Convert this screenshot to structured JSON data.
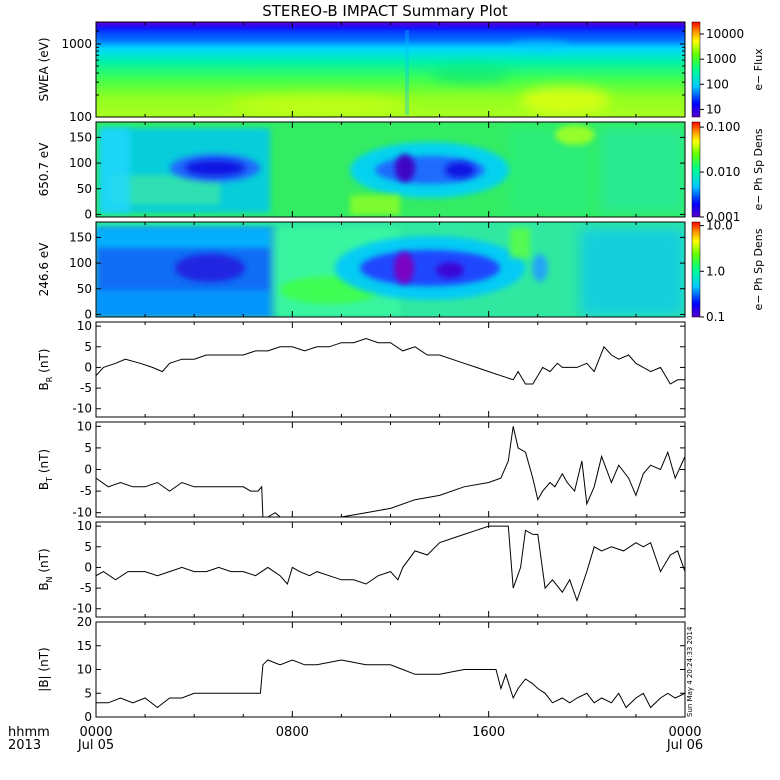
{
  "title": "STEREO-B IMPACT Summary Plot",
  "stamp": "Sun May  4 20:24:33 2014",
  "x_axis": {
    "row1_label": "hhmm",
    "row2_label": "2013",
    "ticks": [
      {
        "hour": 0,
        "time": "0000",
        "date": "Jul 05"
      },
      {
        "hour": 8,
        "time": "0800",
        "date": ""
      },
      {
        "hour": 16,
        "time": "1600",
        "date": ""
      },
      {
        "hour": 24,
        "time": "0000",
        "date": "Jul 06"
      }
    ]
  },
  "chart_data": [
    {
      "type": "heatmap",
      "id": "swea",
      "ylabel": "SWEA (eV)",
      "ylim": [
        100,
        2000
      ],
      "y_scale": "log",
      "y_ticks": [
        "100",
        "1000"
      ],
      "colorbar": {
        "label": "e− Flux",
        "scale": "log",
        "ticks": [
          "10",
          "100",
          "1000",
          "10000"
        ],
        "range": [
          5,
          30000
        ]
      }
    },
    {
      "type": "heatmap",
      "id": "pad650",
      "ylabel": "650.7 eV",
      "ylim": [
        -5,
        180
      ],
      "y_ticks": [
        "0",
        "50",
        "100",
        "150"
      ],
      "colorbar": {
        "label": "e− Ph Sp Dens",
        "scale": "log",
        "ticks": [
          "0.001",
          "0.010",
          "0.100"
        ],
        "range": [
          0.001,
          0.13
        ]
      }
    },
    {
      "type": "heatmap",
      "id": "pad246",
      "ylabel": "246.6 eV",
      "ylim": [
        -5,
        180
      ],
      "y_ticks": [
        "0",
        "50",
        "100",
        "150"
      ],
      "colorbar": {
        "label": "e− Ph Sp Dens",
        "scale": "log",
        "ticks": [
          "0.1",
          "1.0",
          "10.0"
        ],
        "range": [
          0.1,
          12
        ]
      }
    },
    {
      "type": "line",
      "id": "br",
      "ylabel": "B",
      "ylabel_sub": "R",
      "ylabel_unit": "(nT)",
      "ylim": [
        -12,
        11
      ],
      "y_ticks": [
        "-10",
        "-5",
        "0",
        "5",
        "10"
      ],
      "x": [
        0,
        0.3,
        0.8,
        1.2,
        1.8,
        2.3,
        2.7,
        3.0,
        3.5,
        4.0,
        4.5,
        5.0,
        5.5,
        6.0,
        6.5,
        7.0,
        7.5,
        8.0,
        8.5,
        9.0,
        9.5,
        10.0,
        10.5,
        11.0,
        11.5,
        12.0,
        12.5,
        13.0,
        13.5,
        14.0,
        14.5,
        15.0,
        15.5,
        16.0,
        16.5,
        17.0,
        17.2,
        17.5,
        17.8,
        18.0,
        18.2,
        18.5,
        18.8,
        19.0,
        19.3,
        19.6,
        20.0,
        20.3,
        20.7,
        21.0,
        21.3,
        21.7,
        22.0,
        22.3,
        22.6,
        23.0,
        23.4,
        23.7,
        24.0
      ],
      "y": [
        -2,
        0,
        1,
        2,
        1,
        0,
        -1,
        1,
        2,
        2,
        3,
        3,
        3,
        3,
        4,
        4,
        5,
        5,
        4,
        5,
        5,
        6,
        6,
        7,
        6,
        6,
        4,
        5,
        3,
        3,
        2,
        1,
        0,
        -1,
        -2,
        -3,
        -1,
        -4,
        -4,
        -2,
        0,
        -1,
        1,
        0,
        0,
        0,
        1,
        -1,
        5,
        3,
        2,
        3,
        1,
        0,
        -1,
        0,
        -4,
        -3,
        -3
      ]
    },
    {
      "type": "line",
      "id": "bt",
      "ylabel": "B",
      "ylabel_sub": "T",
      "ylabel_unit": "(nT)",
      "ylim": [
        -11,
        11
      ],
      "y_ticks": [
        "-10",
        "-5",
        "0",
        "5",
        "10"
      ],
      "x": [
        0,
        0.5,
        1.0,
        1.5,
        2.0,
        2.5,
        3.0,
        3.5,
        4.0,
        4.5,
        5.0,
        5.5,
        6.0,
        6.3,
        6.6,
        6.75,
        6.8,
        7.0,
        7.3,
        7.5,
        8.0,
        9.0,
        10.0,
        11.0,
        12.0,
        13.0,
        14.0,
        15.0,
        16.0,
        16.5,
        16.8,
        17.0,
        17.2,
        17.5,
        17.8,
        18.0,
        18.2,
        18.5,
        18.7,
        19.0,
        19.2,
        19.5,
        19.8,
        20.0,
        20.3,
        20.6,
        21.0,
        21.3,
        21.7,
        22.0,
        22.3,
        22.6,
        23.0,
        23.3,
        23.6,
        24.0
      ],
      "y": [
        -2,
        -4,
        -3,
        -4,
        -4,
        -3,
        -5,
        -3,
        -4,
        -4,
        -4,
        -4,
        -4,
        -5,
        -5,
        -4,
        -11,
        -11,
        -10,
        -11,
        -11,
        -11,
        -11,
        -10,
        -9,
        -7,
        -6,
        -4,
        -3,
        -2,
        2,
        10,
        5,
        4,
        -2,
        -7,
        -5,
        -3,
        -4,
        -1,
        -3,
        -5,
        2,
        -8,
        -4,
        3,
        -3,
        1,
        -2,
        -6,
        -1,
        1,
        0,
        4,
        -2,
        3
      ]
    },
    {
      "type": "line",
      "id": "bn",
      "ylabel": "B",
      "ylabel_sub": "N",
      "ylabel_unit": "(nT)",
      "ylim": [
        -12,
        11
      ],
      "y_ticks": [
        "-10",
        "-5",
        "0",
        "5",
        "10"
      ],
      "x": [
        0,
        0.3,
        0.8,
        1.3,
        2.0,
        2.5,
        3.0,
        3.5,
        4.0,
        4.5,
        5.0,
        5.5,
        6.0,
        6.5,
        7.0,
        7.5,
        7.8,
        8.0,
        8.3,
        8.7,
        9.0,
        9.5,
        10.0,
        10.5,
        11.0,
        11.5,
        12.0,
        12.3,
        12.5,
        13.0,
        13.5,
        14.0,
        14.5,
        15.0,
        15.5,
        16.0,
        16.4,
        16.6,
        16.8,
        17.0,
        17.3,
        17.5,
        17.8,
        18.0,
        18.3,
        18.6,
        19.0,
        19.3,
        19.6,
        20.0,
        20.3,
        20.6,
        21.0,
        21.5,
        22.0,
        22.3,
        22.6,
        23.0,
        23.4,
        23.7,
        24.0
      ],
      "y": [
        -2,
        -1,
        -3,
        -1,
        -1,
        -2,
        -1,
        0,
        -1,
        -1,
        0,
        -1,
        -1,
        -2,
        0,
        -2,
        -4,
        0,
        -1,
        -2,
        -1,
        -2,
        -3,
        -3,
        -4,
        -2,
        -1,
        -3,
        0,
        4,
        3,
        6,
        7,
        8,
        9,
        10,
        10,
        10,
        10,
        -5,
        0,
        9,
        8,
        8,
        -5,
        -3,
        -6,
        -3,
        -8,
        -1,
        5,
        4,
        5,
        4,
        6,
        5,
        6,
        -1,
        3,
        4,
        -1
      ]
    },
    {
      "type": "line",
      "id": "bmag",
      "ylabel": "|B| (nT)",
      "ylim": [
        0,
        20
      ],
      "y_ticks": [
        "0",
        "5",
        "10",
        "15",
        "20"
      ],
      "x": [
        0,
        0.5,
        1.0,
        1.5,
        2.0,
        2.5,
        3.0,
        3.5,
        4.0,
        5.0,
        6.0,
        6.5,
        6.7,
        6.8,
        7.0,
        7.5,
        8.0,
        8.5,
        9.0,
        10.0,
        11.0,
        12.0,
        12.5,
        13.0,
        14.0,
        15.0,
        16.0,
        16.3,
        16.5,
        16.7,
        17.0,
        17.2,
        17.5,
        17.8,
        18.0,
        18.3,
        18.6,
        19.0,
        19.3,
        19.6,
        20.0,
        20.3,
        20.6,
        21.0,
        21.3,
        21.6,
        22.0,
        22.3,
        22.6,
        23.0,
        23.3,
        23.6,
        24.0
      ],
      "y": [
        3,
        3,
        4,
        3,
        4,
        2,
        4,
        4,
        5,
        5,
        5,
        5,
        5,
        11,
        12,
        11,
        12,
        11,
        11,
        12,
        11,
        11,
        10,
        9,
        9,
        10,
        10,
        10,
        6,
        9,
        4,
        6,
        8,
        7,
        6,
        5,
        3,
        4,
        3,
        4,
        5,
        3,
        4,
        3,
        5,
        2,
        4,
        5,
        2,
        4,
        5,
        4,
        5
      ]
    }
  ]
}
